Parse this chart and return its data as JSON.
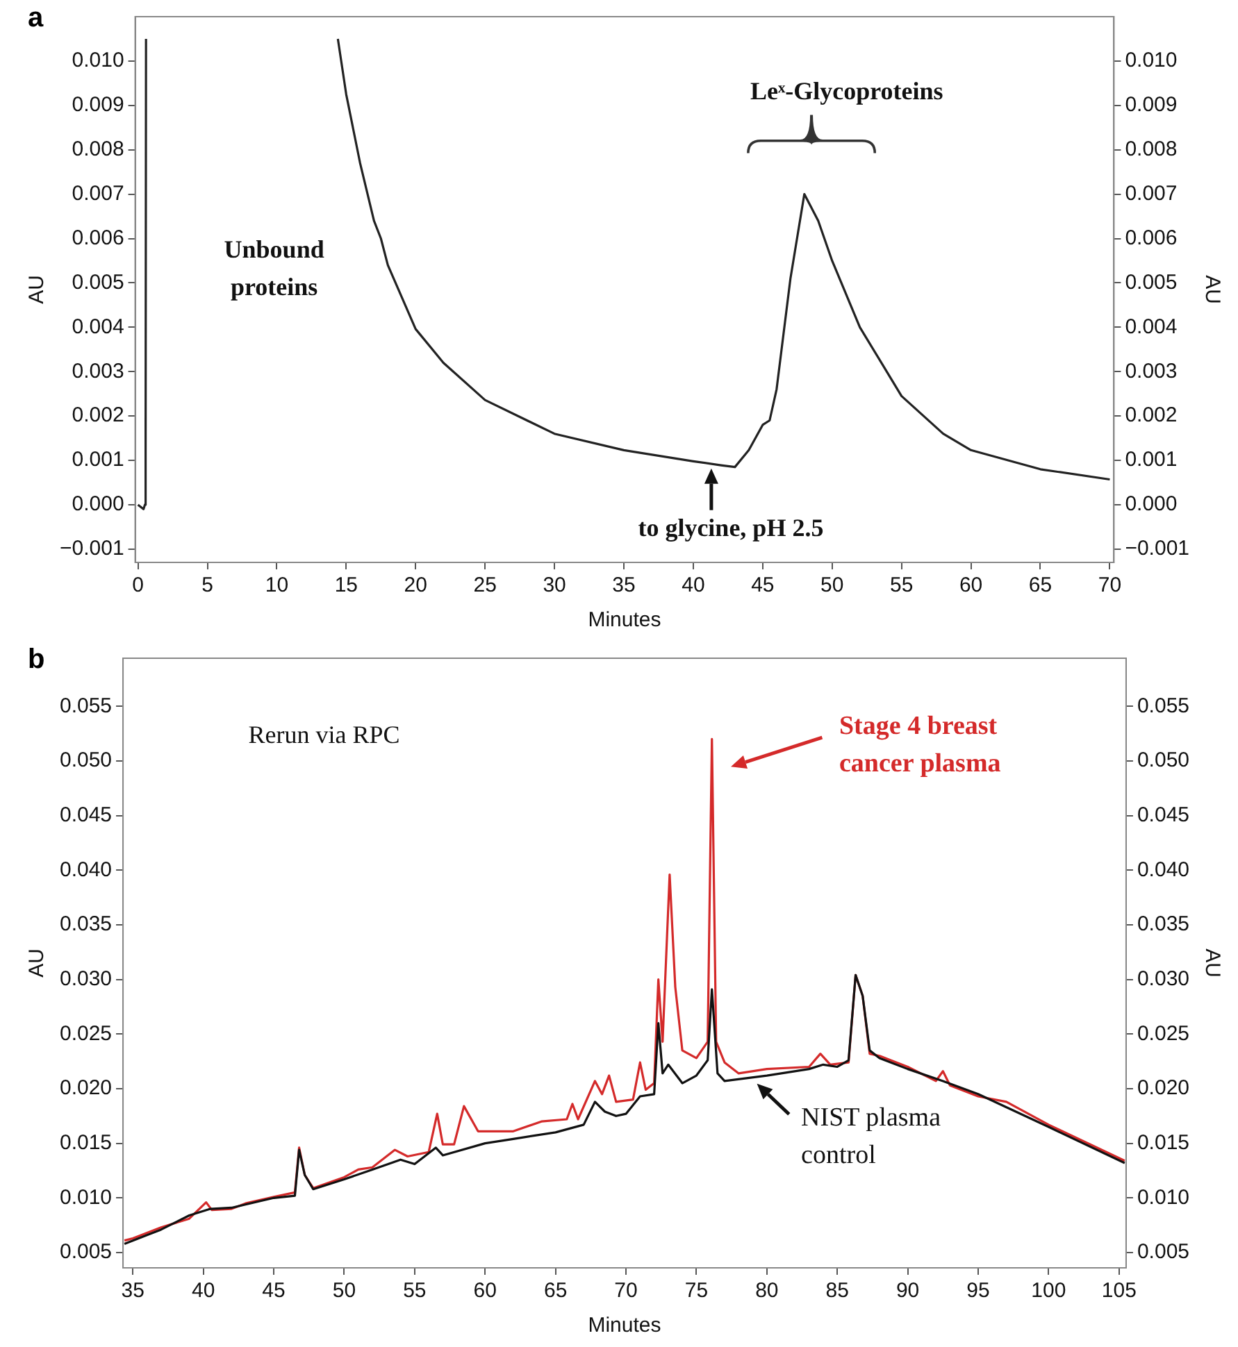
{
  "chart_data": [
    {
      "type": "line",
      "title": "a",
      "xlabel": "Minutes",
      "ylabel": "AU",
      "y2label": "AU",
      "legend": false,
      "grid": false,
      "xlim": [
        -0.2,
        70.3
      ],
      "xticks": [
        0,
        5,
        10,
        15,
        20,
        25,
        30,
        35,
        40,
        45,
        50,
        55,
        60,
        65,
        70
      ],
      "ylim": [
        -0.0013,
        0.011
      ],
      "yticks": [
        {
          "value": -0.001,
          "label": "−0.001"
        },
        {
          "value": 0,
          "label": "0.000"
        },
        {
          "value": 0.001,
          "label": "0.001"
        },
        {
          "value": 0.002,
          "label": "0.002"
        },
        {
          "value": 0.003,
          "label": "0.003"
        },
        {
          "value": 0.004,
          "label": "0.004"
        },
        {
          "value": 0.005,
          "label": "0.005"
        },
        {
          "value": 0.006,
          "label": "0.006"
        },
        {
          "value": 0.007,
          "label": "0.007"
        },
        {
          "value": 0.008,
          "label": "0.008"
        },
        {
          "value": 0.009,
          "label": "0.009"
        },
        {
          "value": 0.01,
          "label": "0.010"
        }
      ],
      "y2lim": [
        -0.0013,
        0.011
      ],
      "y2ticks": [
        {
          "value": -0.001,
          "label": "−0.001"
        },
        {
          "value": 0,
          "label": "0.000"
        },
        {
          "value": 0.001,
          "label": "0.001"
        },
        {
          "value": 0.002,
          "label": "0.002"
        },
        {
          "value": 0.003,
          "label": "0.003"
        },
        {
          "value": 0.004,
          "label": "0.004"
        },
        {
          "value": 0.005,
          "label": "0.005"
        },
        {
          "value": 0.006,
          "label": "0.006"
        },
        {
          "value": 0.007,
          "label": "0.007"
        },
        {
          "value": 0.008,
          "label": "0.008"
        },
        {
          "value": 0.009,
          "label": "0.009"
        },
        {
          "value": 0.01,
          "label": "0.010"
        }
      ],
      "annotations": [
        "Unbound proteins",
        "Leˣ-Glycoproteins",
        {
          "text": "to glycine, pH 2.5",
          "x": 41.3,
          "y": 0.00088
        }
      ],
      "series": [
        {
          "color": "#222222",
          "x": [
            0,
            0.4,
            0.5,
            0.55,
            0.58,
            7,
            14.4,
            15,
            16,
            17,
            17.5,
            18,
            20,
            22,
            25,
            30,
            35,
            40,
            42,
            43,
            44,
            45,
            45.5,
            46,
            47,
            48,
            49,
            50,
            52,
            55,
            58,
            60,
            65,
            70
          ],
          "values": [
            0,
            -0.0001,
            0,
            0.0011,
            0.0105,
            null,
            0.0105,
            0.00925,
            0.0077,
            0.0064,
            0.006,
            0.0054,
            0.00396,
            0.0032,
            0.00236,
            0.0016,
            0.00123,
            0.00098,
            0.00089,
            0.00085,
            0.00123,
            0.0018,
            0.0019,
            0.0026,
            0.0051,
            0.007,
            0.0064,
            0.0055,
            0.004,
            0.00245,
            0.0016,
            0.00123,
            0.0008,
            0.00057
          ]
        }
      ]
    },
    {
      "type": "line",
      "title": "b",
      "xlabel": "Minutes",
      "ylabel": "AU",
      "y2label": "AU",
      "legend": "right",
      "grid": false,
      "xlim": [
        34.3,
        105.5
      ],
      "xticks": [
        35,
        40,
        45,
        50,
        55,
        60,
        65,
        70,
        75,
        80,
        85,
        90,
        95,
        100,
        105
      ],
      "ylim": [
        0.0036,
        0.0594
      ],
      "yticks": [
        {
          "value": 0.005,
          "label": "0.005"
        },
        {
          "value": 0.01,
          "label": "0.010"
        },
        {
          "value": 0.015,
          "label": "0.015"
        },
        {
          "value": 0.02,
          "label": "0.020"
        },
        {
          "value": 0.025,
          "label": "0.025"
        },
        {
          "value": 0.03,
          "label": "0.030"
        },
        {
          "value": 0.035,
          "label": "0.035"
        },
        {
          "value": 0.04,
          "label": "0.040"
        },
        {
          "value": 0.045,
          "label": "0.045"
        },
        {
          "value": 0.05,
          "label": "0.050"
        },
        {
          "value": 0.055,
          "label": "0.055"
        }
      ],
      "y2lim": [
        0.0036,
        0.0594
      ],
      "y2ticks": [
        {
          "value": 0.005,
          "label": "0.005"
        },
        {
          "value": 0.01,
          "label": "0.010"
        },
        {
          "value": 0.015,
          "label": "0.015"
        },
        {
          "value": 0.02,
          "label": "0.020"
        },
        {
          "value": 0.025,
          "label": "0.025"
        },
        {
          "value": 0.03,
          "label": "0.030"
        },
        {
          "value": 0.035,
          "label": "0.035"
        },
        {
          "value": 0.04,
          "label": "0.040"
        },
        {
          "value": 0.045,
          "label": "0.045"
        },
        {
          "value": 0.05,
          "label": "0.050"
        },
        {
          "value": 0.055,
          "label": "0.055"
        }
      ],
      "annotations": [
        "Rerun via RPC"
      ],
      "series": [
        {
          "name": "NIST plasma control",
          "color": "#111111",
          "x": [
            34.4,
            35,
            37,
            39,
            40.5,
            42,
            43,
            45,
            46.5,
            46.8,
            47.2,
            47.8,
            50,
            52,
            54,
            55,
            56.5,
            57,
            60,
            62,
            65,
            67,
            67.8,
            68.5,
            69.3,
            70,
            71,
            72,
            72.3,
            72.6,
            73,
            74,
            75,
            75.8,
            76.1,
            76.5,
            77,
            80,
            83,
            84,
            85,
            85.8,
            86.3,
            86.8,
            87.3,
            88,
            90,
            92.5,
            95,
            100,
            105.4
          ],
          "values": [
            0.0058,
            0.0061,
            0.0071,
            0.0084,
            0.009,
            0.0091,
            0.0094,
            0.01,
            0.0102,
            0.0144,
            0.0121,
            0.0108,
            0.0117,
            0.0126,
            0.0135,
            0.0131,
            0.0146,
            0.0139,
            0.015,
            0.0154,
            0.016,
            0.0167,
            0.0188,
            0.0179,
            0.0175,
            0.0177,
            0.0193,
            0.0195,
            0.026,
            0.0214,
            0.0222,
            0.0205,
            0.0212,
            0.0226,
            0.0291,
            0.0214,
            0.0207,
            0.0212,
            0.0218,
            0.0222,
            0.022,
            0.0226,
            0.0304,
            0.0285,
            0.0235,
            0.0228,
            0.0218,
            0.0207,
            0.0195,
            0.0165,
            0.0132
          ]
        },
        {
          "name": "Stage 4 breast cancer plasma",
          "color": "#d42a2a",
          "x": [
            34.4,
            35,
            37,
            39,
            40.2,
            40.6,
            42,
            43,
            45,
            46.5,
            46.8,
            47.2,
            47.8,
            50,
            51,
            52,
            53.6,
            54.5,
            56,
            56.6,
            57,
            57.8,
            58.5,
            59.5,
            62,
            64,
            65.8,
            66.2,
            66.6,
            67.8,
            68.3,
            68.8,
            69.3,
            70.5,
            71,
            71.4,
            72,
            72.3,
            72.6,
            73.1,
            73.5,
            74,
            75,
            75.8,
            76.1,
            76.4,
            77,
            78,
            80,
            83,
            83.8,
            84.5,
            85.8,
            86.3,
            86.8,
            87.3,
            88,
            90,
            92,
            92.5,
            93,
            95,
            97,
            100,
            105.4
          ],
          "values": [
            0.0061,
            0.0063,
            0.0073,
            0.0081,
            0.0096,
            0.0089,
            0.009,
            0.0095,
            0.0101,
            0.0105,
            0.0146,
            0.0121,
            0.0109,
            0.0119,
            0.0126,
            0.0128,
            0.0144,
            0.0138,
            0.0142,
            0.0177,
            0.0149,
            0.0149,
            0.0184,
            0.0161,
            0.0161,
            0.017,
            0.0172,
            0.0186,
            0.0172,
            0.0207,
            0.0195,
            0.0212,
            0.0188,
            0.019,
            0.0224,
            0.0199,
            0.0205,
            0.03,
            0.0243,
            0.0396,
            0.0293,
            0.0235,
            0.0228,
            0.0243,
            0.052,
            0.0243,
            0.0224,
            0.0214,
            0.0218,
            0.022,
            0.0232,
            0.0222,
            0.0224,
            0.0304,
            0.0285,
            0.0232,
            0.023,
            0.022,
            0.0207,
            0.0216,
            0.0203,
            0.0193,
            0.0188,
            0.0167,
            0.0134
          ]
        }
      ]
    }
  ]
}
